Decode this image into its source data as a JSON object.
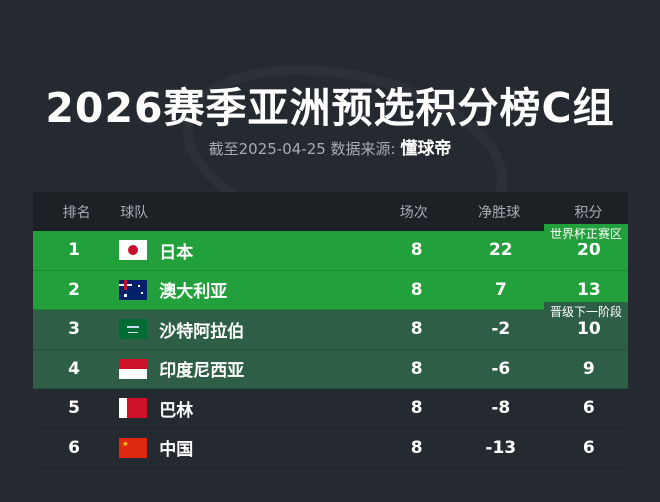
{
  "title": "2026赛季亚洲预选积分榜C组",
  "subtitle": {
    "prefix": "截至2025-04-25 数据来源: ",
    "source": "懂球帝"
  },
  "headers": {
    "rank": "排名",
    "team": "球队",
    "matches": "场次",
    "gd": "净胜球",
    "pts": "积分"
  },
  "tags": {
    "qualify": "世界杯正赛区",
    "next": "晋级下一阶段"
  },
  "colors": {
    "qualify": "#22a03b",
    "next": "#2e5f46",
    "background": "#252a30"
  },
  "rows": [
    {
      "rank": "1",
      "flag": "japan-flag-icon",
      "team": "日本",
      "matches": "8",
      "gd": "22",
      "pts": "20"
    },
    {
      "rank": "2",
      "flag": "australia-flag-icon",
      "team": "澳大利亚",
      "matches": "8",
      "gd": "7",
      "pts": "13"
    },
    {
      "rank": "3",
      "flag": "saudi-arabia-flag-icon",
      "team": "沙特阿拉伯",
      "matches": "8",
      "gd": "-2",
      "pts": "10"
    },
    {
      "rank": "4",
      "flag": "indonesia-flag-icon",
      "team": "印度尼西亚",
      "matches": "8",
      "gd": "-6",
      "pts": "9"
    },
    {
      "rank": "5",
      "flag": "bahrain-flag-icon",
      "team": "巴林",
      "matches": "8",
      "gd": "-8",
      "pts": "6"
    },
    {
      "rank": "6",
      "flag": "china-flag-icon",
      "team": "中国",
      "matches": "8",
      "gd": "-13",
      "pts": "6"
    }
  ]
}
